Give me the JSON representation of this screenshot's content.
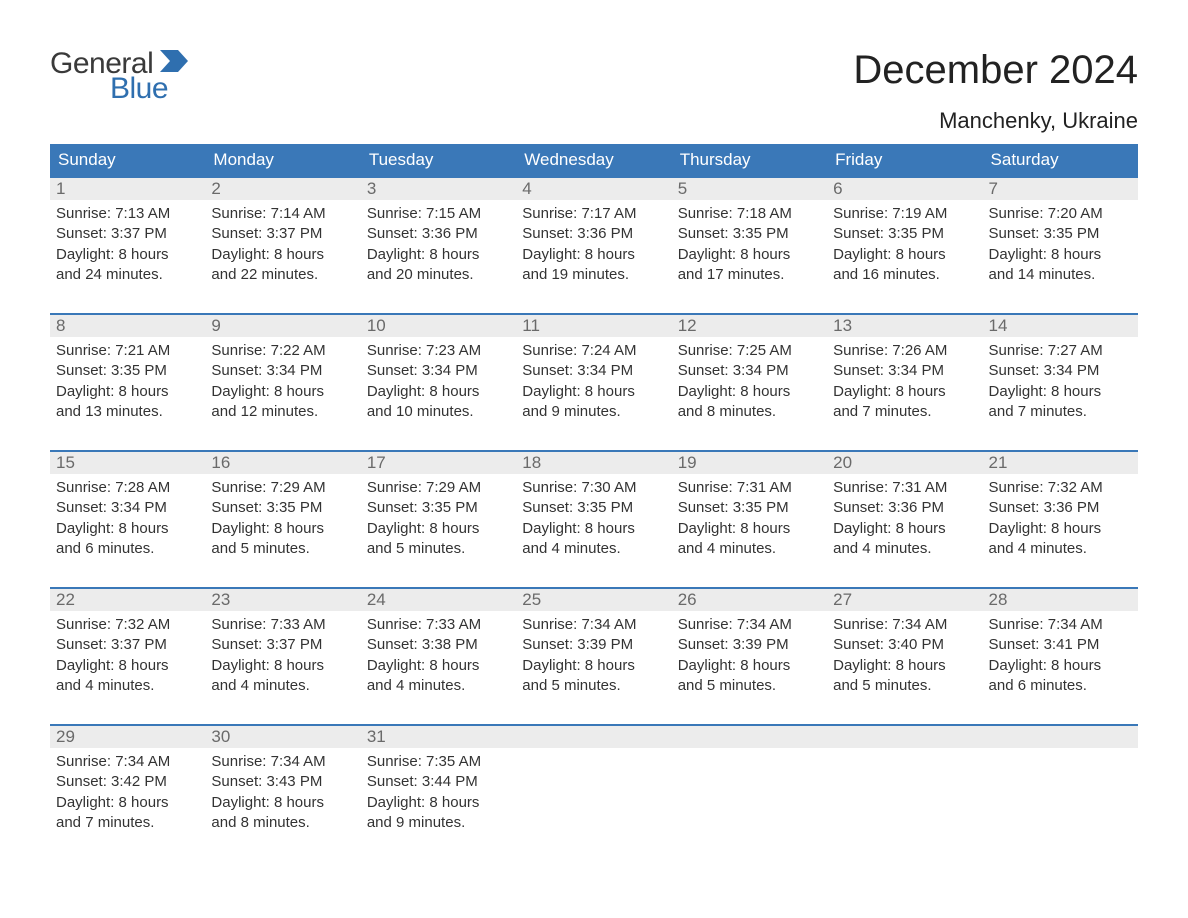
{
  "brand": {
    "general": "General",
    "blue": "Blue",
    "icon_color": "#2f6faf"
  },
  "title": {
    "month": "December 2024",
    "location": "Manchenky, Ukraine"
  },
  "colors": {
    "header_bg": "#3a78b8",
    "header_text": "#ffffff",
    "daynum_bg": "#ececec",
    "daynum_text": "#6a6a6a",
    "body_text": "#333333",
    "week_border": "#3a78b8",
    "page_bg": "#ffffff"
  },
  "day_headers": [
    "Sunday",
    "Monday",
    "Tuesday",
    "Wednesday",
    "Thursday",
    "Friday",
    "Saturday"
  ],
  "weeks": [
    [
      {
        "num": "1",
        "sunrise": "Sunrise: 7:13 AM",
        "sunset": "Sunset: 3:37 PM",
        "day1": "Daylight: 8 hours",
        "day2": "and 24 minutes."
      },
      {
        "num": "2",
        "sunrise": "Sunrise: 7:14 AM",
        "sunset": "Sunset: 3:37 PM",
        "day1": "Daylight: 8 hours",
        "day2": "and 22 minutes."
      },
      {
        "num": "3",
        "sunrise": "Sunrise: 7:15 AM",
        "sunset": "Sunset: 3:36 PM",
        "day1": "Daylight: 8 hours",
        "day2": "and 20 minutes."
      },
      {
        "num": "4",
        "sunrise": "Sunrise: 7:17 AM",
        "sunset": "Sunset: 3:36 PM",
        "day1": "Daylight: 8 hours",
        "day2": "and 19 minutes."
      },
      {
        "num": "5",
        "sunrise": "Sunrise: 7:18 AM",
        "sunset": "Sunset: 3:35 PM",
        "day1": "Daylight: 8 hours",
        "day2": "and 17 minutes."
      },
      {
        "num": "6",
        "sunrise": "Sunrise: 7:19 AM",
        "sunset": "Sunset: 3:35 PM",
        "day1": "Daylight: 8 hours",
        "day2": "and 16 minutes."
      },
      {
        "num": "7",
        "sunrise": "Sunrise: 7:20 AM",
        "sunset": "Sunset: 3:35 PM",
        "day1": "Daylight: 8 hours",
        "day2": "and 14 minutes."
      }
    ],
    [
      {
        "num": "8",
        "sunrise": "Sunrise: 7:21 AM",
        "sunset": "Sunset: 3:35 PM",
        "day1": "Daylight: 8 hours",
        "day2": "and 13 minutes."
      },
      {
        "num": "9",
        "sunrise": "Sunrise: 7:22 AM",
        "sunset": "Sunset: 3:34 PM",
        "day1": "Daylight: 8 hours",
        "day2": "and 12 minutes."
      },
      {
        "num": "10",
        "sunrise": "Sunrise: 7:23 AM",
        "sunset": "Sunset: 3:34 PM",
        "day1": "Daylight: 8 hours",
        "day2": "and 10 minutes."
      },
      {
        "num": "11",
        "sunrise": "Sunrise: 7:24 AM",
        "sunset": "Sunset: 3:34 PM",
        "day1": "Daylight: 8 hours",
        "day2": "and 9 minutes."
      },
      {
        "num": "12",
        "sunrise": "Sunrise: 7:25 AM",
        "sunset": "Sunset: 3:34 PM",
        "day1": "Daylight: 8 hours",
        "day2": "and 8 minutes."
      },
      {
        "num": "13",
        "sunrise": "Sunrise: 7:26 AM",
        "sunset": "Sunset: 3:34 PM",
        "day1": "Daylight: 8 hours",
        "day2": "and 7 minutes."
      },
      {
        "num": "14",
        "sunrise": "Sunrise: 7:27 AM",
        "sunset": "Sunset: 3:34 PM",
        "day1": "Daylight: 8 hours",
        "day2": "and 7 minutes."
      }
    ],
    [
      {
        "num": "15",
        "sunrise": "Sunrise: 7:28 AM",
        "sunset": "Sunset: 3:34 PM",
        "day1": "Daylight: 8 hours",
        "day2": "and 6 minutes."
      },
      {
        "num": "16",
        "sunrise": "Sunrise: 7:29 AM",
        "sunset": "Sunset: 3:35 PM",
        "day1": "Daylight: 8 hours",
        "day2": "and 5 minutes."
      },
      {
        "num": "17",
        "sunrise": "Sunrise: 7:29 AM",
        "sunset": "Sunset: 3:35 PM",
        "day1": "Daylight: 8 hours",
        "day2": "and 5 minutes."
      },
      {
        "num": "18",
        "sunrise": "Sunrise: 7:30 AM",
        "sunset": "Sunset: 3:35 PM",
        "day1": "Daylight: 8 hours",
        "day2": "and 4 minutes."
      },
      {
        "num": "19",
        "sunrise": "Sunrise: 7:31 AM",
        "sunset": "Sunset: 3:35 PM",
        "day1": "Daylight: 8 hours",
        "day2": "and 4 minutes."
      },
      {
        "num": "20",
        "sunrise": "Sunrise: 7:31 AM",
        "sunset": "Sunset: 3:36 PM",
        "day1": "Daylight: 8 hours",
        "day2": "and 4 minutes."
      },
      {
        "num": "21",
        "sunrise": "Sunrise: 7:32 AM",
        "sunset": "Sunset: 3:36 PM",
        "day1": "Daylight: 8 hours",
        "day2": "and 4 minutes."
      }
    ],
    [
      {
        "num": "22",
        "sunrise": "Sunrise: 7:32 AM",
        "sunset": "Sunset: 3:37 PM",
        "day1": "Daylight: 8 hours",
        "day2": "and 4 minutes."
      },
      {
        "num": "23",
        "sunrise": "Sunrise: 7:33 AM",
        "sunset": "Sunset: 3:37 PM",
        "day1": "Daylight: 8 hours",
        "day2": "and 4 minutes."
      },
      {
        "num": "24",
        "sunrise": "Sunrise: 7:33 AM",
        "sunset": "Sunset: 3:38 PM",
        "day1": "Daylight: 8 hours",
        "day2": "and 4 minutes."
      },
      {
        "num": "25",
        "sunrise": "Sunrise: 7:34 AM",
        "sunset": "Sunset: 3:39 PM",
        "day1": "Daylight: 8 hours",
        "day2": "and 5 minutes."
      },
      {
        "num": "26",
        "sunrise": "Sunrise: 7:34 AM",
        "sunset": "Sunset: 3:39 PM",
        "day1": "Daylight: 8 hours",
        "day2": "and 5 minutes."
      },
      {
        "num": "27",
        "sunrise": "Sunrise: 7:34 AM",
        "sunset": "Sunset: 3:40 PM",
        "day1": "Daylight: 8 hours",
        "day2": "and 5 minutes."
      },
      {
        "num": "28",
        "sunrise": "Sunrise: 7:34 AM",
        "sunset": "Sunset: 3:41 PM",
        "day1": "Daylight: 8 hours",
        "day2": "and 6 minutes."
      }
    ],
    [
      {
        "num": "29",
        "sunrise": "Sunrise: 7:34 AM",
        "sunset": "Sunset: 3:42 PM",
        "day1": "Daylight: 8 hours",
        "day2": "and 7 minutes."
      },
      {
        "num": "30",
        "sunrise": "Sunrise: 7:34 AM",
        "sunset": "Sunset: 3:43 PM",
        "day1": "Daylight: 8 hours",
        "day2": "and 8 minutes."
      },
      {
        "num": "31",
        "sunrise": "Sunrise: 7:35 AM",
        "sunset": "Sunset: 3:44 PM",
        "day1": "Daylight: 8 hours",
        "day2": "and 9 minutes."
      },
      null,
      null,
      null,
      null
    ]
  ]
}
